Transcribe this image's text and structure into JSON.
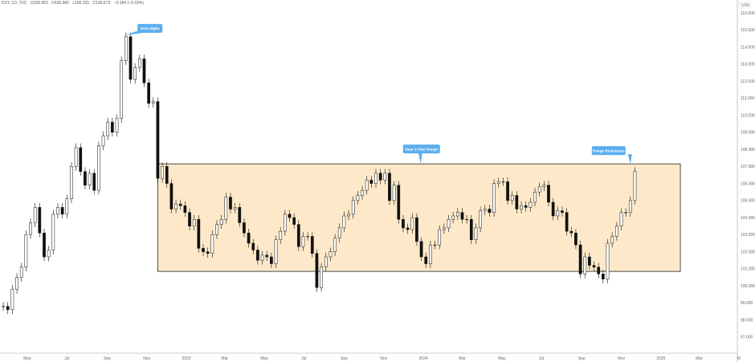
{
  "header": {
    "symbol": "DXY, 1D, TVC",
    "open": "O106.902",
    "high": "H106.960",
    "low": "L106.331",
    "close": "C106.673",
    "change": "−0.194 (−0.18%)"
  },
  "colors": {
    "range_fill": "#fde9c9",
    "annotation": "#5aaef0",
    "candle": "#111111"
  },
  "chart_data": {
    "type": "candlestick",
    "title": "",
    "currency_label": "USD",
    "y_ticks": [
      "116.000",
      "115.000",
      "114.000",
      "113.000",
      "112.000",
      "111.000",
      "110.000",
      "109.000",
      "108.000",
      "107.000",
      "106.000",
      "105.000",
      "104.000",
      "103.000",
      "102.000",
      "101.000",
      "100.000",
      "99.000",
      "98.000",
      "97.000"
    ],
    "ylim": [
      96.5,
      116.4
    ],
    "x_ticks": [
      {
        "label": "May",
        "date": "2022-05-01"
      },
      {
        "label": "Jul",
        "date": "2022-07-01"
      },
      {
        "label": "Sep",
        "date": "2022-09-01"
      },
      {
        "label": "Nov",
        "date": "2022-11-01"
      },
      {
        "label": "2023",
        "date": "2023-01-01"
      },
      {
        "label": "Mar",
        "date": "2023-03-01"
      },
      {
        "label": "May",
        "date": "2023-05-01"
      },
      {
        "label": "Jul",
        "date": "2023-07-01"
      },
      {
        "label": "Sep",
        "date": "2023-09-01"
      },
      {
        "label": "Nov",
        "date": "2023-11-01"
      },
      {
        "label": "2024",
        "date": "2024-01-01"
      },
      {
        "label": "Mar",
        "date": "2024-03-01"
      },
      {
        "label": "May",
        "date": "2024-05-01"
      },
      {
        "label": "Jul",
        "date": "2024-07-01"
      },
      {
        "label": "Sep",
        "date": "2024-09-01"
      },
      {
        "label": "Nov",
        "date": "2024-11-01"
      },
      {
        "label": "2025",
        "date": "2025-01-01"
      },
      {
        "label": "Mar",
        "date": "2025-03-01"
      },
      {
        "label": "M",
        "date": "2025-05-01"
      }
    ],
    "series_start": "2022-03-25",
    "interval": "1W",
    "closes": [
      98.8,
      98.6,
      99.8,
      100.5,
      101.1,
      103.0,
      103.7,
      104.6,
      103.1,
      101.7,
      102.1,
      104.2,
      104.6,
      104.2,
      105.1,
      107.0,
      108.1,
      106.7,
      105.9,
      106.6,
      105.6,
      108.2,
      108.8,
      109.6,
      109.0,
      109.8,
      113.2,
      114.6,
      112.1,
      112.8,
      113.3,
      111.9,
      110.7,
      110.8,
      106.3,
      107.0,
      106.0,
      104.5,
      104.8,
      104.7,
      104.3,
      103.5,
      103.9,
      102.2,
      102.0,
      101.9,
      103.0,
      103.6,
      103.9,
      105.2,
      104.5,
      104.6,
      103.7,
      103.1,
      102.5,
      102.1,
      101.5,
      101.8,
      101.7,
      101.3,
      102.7,
      103.2,
      104.2,
      104.0,
      103.6,
      102.3,
      102.9,
      102.9,
      101.9,
      99.9,
      101.1,
      101.7,
      102.0,
      102.8,
      103.4,
      104.1,
      104.2,
      105.0,
      105.3,
      105.6,
      106.2,
      106.0,
      106.6,
      106.2,
      106.6,
      105.0,
      105.9,
      103.9,
      103.4,
      103.3,
      104.0,
      102.6,
      101.7,
      101.3,
      102.4,
      102.4,
      103.3,
      103.4,
      103.9,
      104.1,
      104.3,
      103.9,
      103.9,
      102.7,
      103.4,
      104.4,
      104.5,
      104.3,
      106.0,
      106.1,
      106.1,
      105.0,
      105.3,
      104.5,
      104.7,
      104.6,
      104.9,
      105.5,
      105.8,
      105.9,
      104.9,
      104.1,
      104.4,
      104.3,
      103.2,
      103.1,
      102.4,
      100.7,
      101.7,
      101.2,
      101.1,
      100.7,
      100.4,
      102.5,
      102.9,
      103.5,
      104.3,
      104.3,
      105.0,
      106.7
    ],
    "range_box": {
      "from": "2022-11-18",
      "to": "2025-01-31",
      "low": 100.85,
      "high": 107.15
    },
    "annotations": [
      {
        "text": "2022 Highs",
        "date": "2022-09-28",
        "price": 114.78
      },
      {
        "text": "Near 2-Year Range",
        "date": "2023-12-28",
        "price": 107.15
      },
      {
        "text": "Range Resistance",
        "date": "2024-11-15",
        "price": 107.15
      }
    ]
  }
}
